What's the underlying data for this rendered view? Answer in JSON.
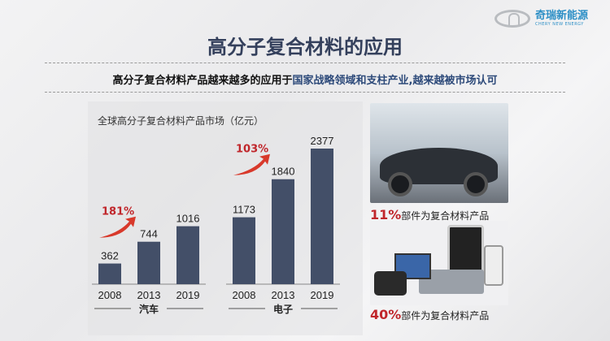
{
  "logo": {
    "cn": "奇瑞新能源",
    "en": "CHERY NEW ENERGY"
  },
  "title": "高分子复合材料的应用",
  "subtitle": {
    "part1": "高分子复合材料产品越来越多的应用于",
    "part2": "国家战略领域和支柱产业,越来越被市场认可"
  },
  "chart_data": {
    "type": "bar",
    "title": "全球高分子复合材料产品市场（亿元）",
    "groups": [
      {
        "name": "汽车",
        "categories": [
          "2008",
          "2013",
          "2019"
        ],
        "values": [
          362,
          744,
          1016
        ],
        "growth": "181%"
      },
      {
        "name": "电子",
        "categories": [
          "2008",
          "2013",
          "2019"
        ],
        "values": [
          1173,
          1840,
          2377
        ],
        "growth": "103%"
      }
    ],
    "bar_color": "#434f68",
    "growth_color": "#c0262b",
    "ylim": [
      0,
      2500
    ]
  },
  "captions": [
    {
      "pct": "11%",
      "text": "部件为复合材料产品"
    },
    {
      "pct": "40%",
      "text": "部件为复合材料产品"
    }
  ]
}
